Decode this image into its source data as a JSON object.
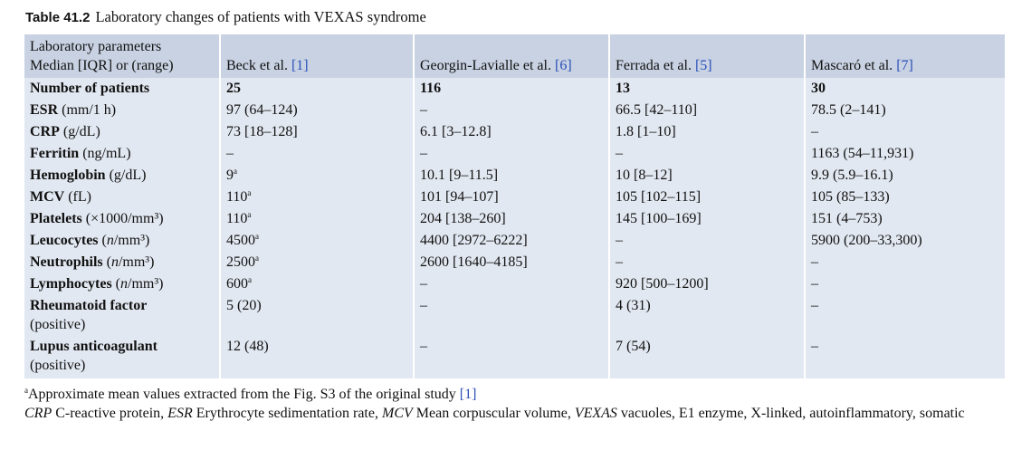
{
  "caption": {
    "label": "Table 41.2",
    "text": "Laboratory changes of patients with VEXAS syndrome"
  },
  "table": {
    "header": [
      {
        "lines": [
          "Laboratory parameters",
          "Median [IQR] or (range)"
        ]
      },
      {
        "text": "Beck et al. ",
        "ref": "[1]"
      },
      {
        "text": "Georgin-Lavialle et al. ",
        "ref": "[6]"
      },
      {
        "text": "Ferrada et al. ",
        "ref": "[5]"
      },
      {
        "text": "Mascaró et al. ",
        "ref": "[7]"
      }
    ],
    "rows": [
      {
        "name": "Number of patients",
        "bold_values": true,
        "cells": [
          "25",
          "116",
          "13",
          "30"
        ]
      },
      {
        "name": "ESR",
        "unit": " (mm/1 h)",
        "cells": [
          "97 (64–124)",
          "–",
          "66.5 [42–110]",
          "78.5 (2–141)"
        ]
      },
      {
        "name": "CRP",
        "unit": " (g/dL)",
        "cells": [
          "73 [18–128]",
          "6.1 [3–12.8]",
          "1.8 [1–10]",
          "–"
        ]
      },
      {
        "name": "Ferritin",
        "unit": " (ng/mL)",
        "cells": [
          "–",
          "–",
          "–",
          "1163 (54–11,931)"
        ]
      },
      {
        "name": "Hemoglobin",
        "unit": " (g/dL)",
        "cells": [
          {
            "text": "9",
            "sup": "a"
          },
          "10.1 [9–11.5]",
          "10 [8–12]",
          "9.9 (5.9–16.1)"
        ]
      },
      {
        "name": "MCV",
        "unit": " (fL)",
        "cells": [
          {
            "text": "110",
            "sup": "a"
          },
          "101 [94–107]",
          "105 [102–115]",
          "105 (85–133)"
        ]
      },
      {
        "name": "Platelets",
        "unit": " (×1000/mm³)",
        "cells": [
          {
            "text": "110",
            "sup": "a"
          },
          "204 [138–260]",
          "145 [100–169]",
          "151 (4–753)"
        ]
      },
      {
        "name": "Leucocytes",
        "unit": {
          "before": " (",
          "italic": "n",
          "after": "/mm³)"
        },
        "cells": [
          {
            "text": "4500",
            "sup": "a"
          },
          "4400 [2972–6222]",
          "–",
          "5900 (200–33,300)"
        ]
      },
      {
        "name": "Neutrophils",
        "unit": {
          "before": " (",
          "italic": "n",
          "after": "/mm³)"
        },
        "cells": [
          {
            "text": "2500",
            "sup": "a"
          },
          "2600 [1640–4185]",
          "–",
          "–"
        ]
      },
      {
        "name": "Lymphocytes",
        "unit": {
          "before": " (",
          "italic": "n",
          "after": "/mm³)"
        },
        "cells": [
          {
            "text": "600",
            "sup": "a"
          },
          "–",
          "920 [500–1200]",
          "–"
        ]
      },
      {
        "name": "Rheumatoid factor",
        "note": "(positive)",
        "cells": [
          "5 (20)",
          "–",
          "4 (31)",
          "–"
        ]
      },
      {
        "name": "Lupus anticoagulant",
        "note": "(positive)",
        "cells": [
          "12 (48)",
          "–",
          "7 (54)",
          "–"
        ]
      }
    ]
  },
  "footnotes": {
    "first": {
      "sup": "a",
      "text": "Approximate mean values extracted from the Fig. S3 of the original study ",
      "ref": "[1]"
    },
    "abbreviations": [
      {
        "abbr": "CRP",
        "def": " C-reactive protein, "
      },
      {
        "abbr": "ESR",
        "def": " Erythrocyte sedimentation rate, "
      },
      {
        "abbr": "MCV",
        "def": " Mean corpuscular volume, "
      },
      {
        "abbr": "VEXAS",
        "def": " vacuoles, E1 enzyme, X-linked, autoinflammatory, somatic"
      }
    ]
  }
}
